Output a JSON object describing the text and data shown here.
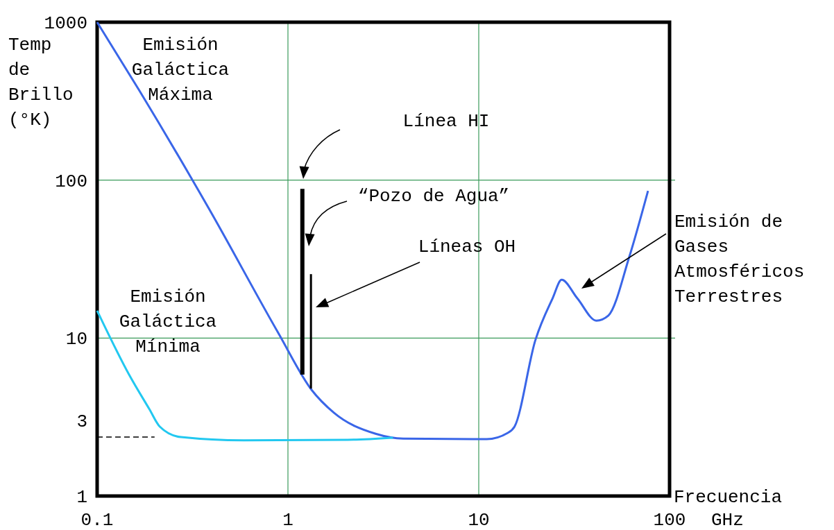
{
  "chart_data": {
    "type": "line",
    "xlabel": "Frecuencia\nGHz",
    "ylabel": "Temp\nde\nBrillo\n(°K)",
    "log": "xy",
    "grid": "x",
    "xlim": [
      0.1,
      100
    ],
    "xticks": [
      0.1,
      1,
      10,
      100
    ],
    "ylim": [
      1,
      1000
    ],
    "yticks": [
      1,
      3,
      10,
      100,
      1000
    ],
    "ref_lines": [
      {
        "axis": "y",
        "value": 100,
        "color": "#3a9a5a"
      },
      {
        "axis": "y",
        "value": 10,
        "color": "#3a9a5a"
      }
    ],
    "series": [
      {
        "color": "#3a66e8",
        "x": [
          0.1,
          0.166,
          0.384,
          0.889,
          1.33,
          1.74,
          2.88,
          4.02,
          11.0,
          14.2,
          15.4,
          19.8,
          24.4,
          27.2,
          32.8,
          41.4,
          47.8,
          61.5,
          77.1
        ],
        "values": [
          1000,
          371,
          66.5,
          10.8,
          4.7,
          3.37,
          2.48,
          2.31,
          2.29,
          2.51,
          2.75,
          9.7,
          17.9,
          23.4,
          17.9,
          12.9,
          13.9,
          32.7,
          85.6
        ]
      },
      {
        "color": "#22c8f0",
        "x": [
          0.1,
          0.147,
          0.188,
          0.213,
          0.275,
          0.585,
          2.06,
          3.55
        ],
        "values": [
          14.9,
          5.87,
          3.54,
          2.75,
          2.36,
          2.25,
          2.27,
          2.34
        ]
      },
      {
        "color": "#000000",
        "line_style": "dashed",
        "x": [
          0.1,
          0.2
        ],
        "values": [
          2.36,
          2.36
        ]
      },
      {
        "color": "#000000",
        "x": [
          1.19,
          1.19
        ],
        "values": [
          5.87,
          88
        ]
      },
      {
        "color": "#000000",
        "x": [
          1.32,
          1.32
        ],
        "values": [
          4.79,
          25.4
        ]
      }
    ],
    "annotations": [
      "Emisión\nGaláctica\nMáxima",
      "Emisión\nGaláctica\nMínima",
      "Línea HI",
      "“Pozo de Agua”",
      "Líneas OH",
      "Emisión de\nGases\nAtmosféricos\nTerrestres"
    ]
  }
}
